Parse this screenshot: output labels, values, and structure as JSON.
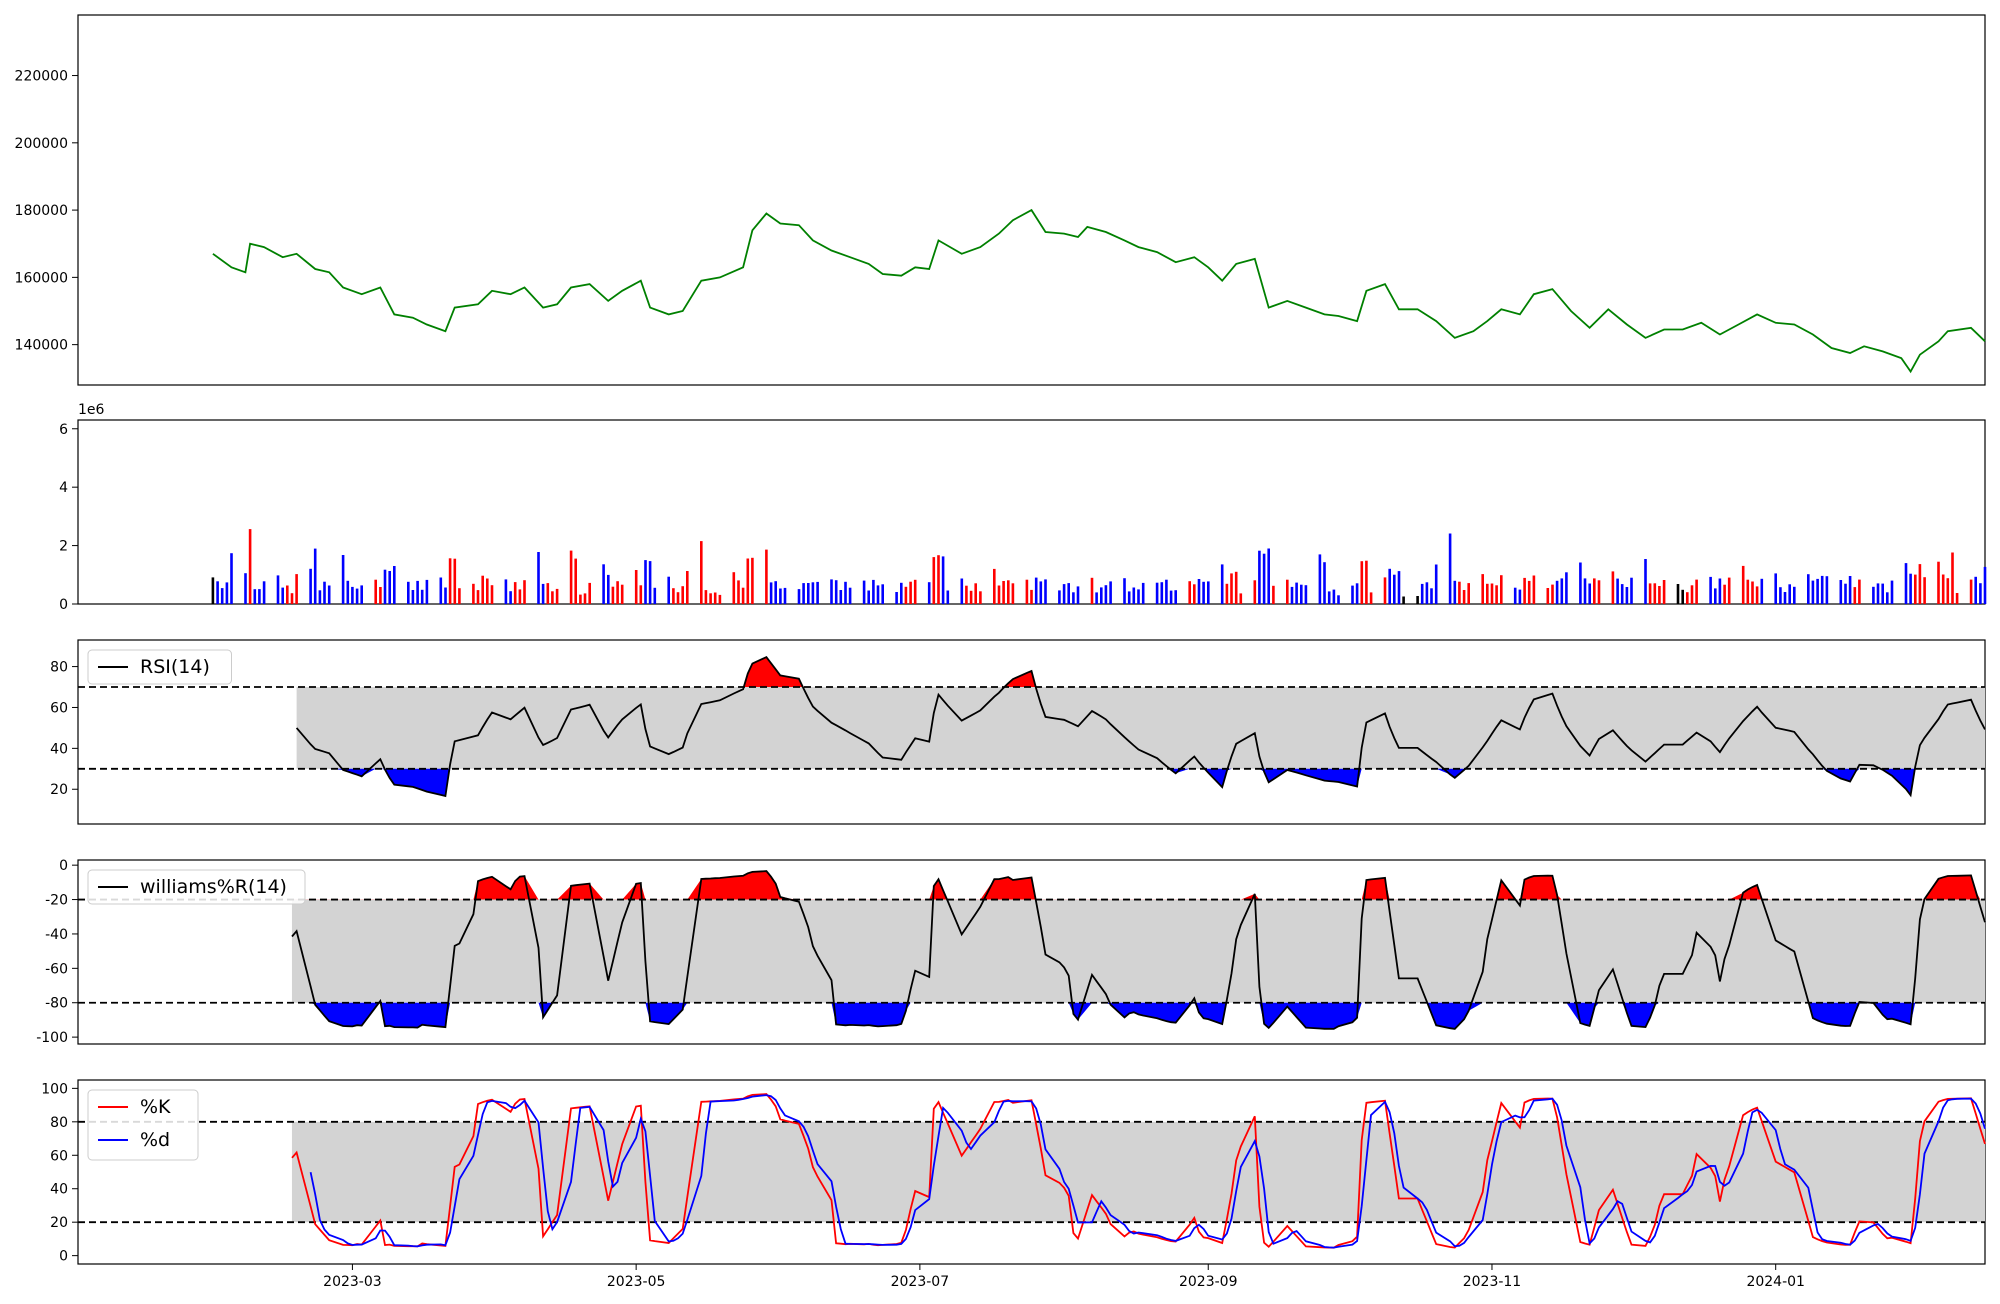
{
  "chart_data": [
    {
      "type": "line",
      "panel": "price",
      "x_range": [
        "2023-01-01",
        "2024-02-15"
      ],
      "ylim": [
        128000,
        238000
      ],
      "yticks": [
        140000,
        160000,
        180000,
        200000,
        220000
      ],
      "grid": false,
      "colors": {
        "line": "#008000"
      },
      "series": [
        {
          "points": [
            [
              "2023-01-30",
              167000
            ],
            [
              "2023-02-03",
              163000
            ],
            [
              "2023-02-06",
              161500
            ],
            [
              "2023-02-07",
              170000
            ],
            [
              "2023-02-10",
              169000
            ],
            [
              "2023-02-14",
              166000
            ],
            [
              "2023-02-17",
              167000
            ],
            [
              "2023-02-21",
              162500
            ],
            [
              "2023-02-24",
              161500
            ],
            [
              "2023-02-27",
              157000
            ],
            [
              "2023-03-03",
              155000
            ],
            [
              "2023-03-07",
              157000
            ],
            [
              "2023-03-10",
              149000
            ],
            [
              "2023-03-14",
              148000
            ],
            [
              "2023-03-17",
              146000
            ],
            [
              "2023-03-21",
              144000
            ],
            [
              "2023-03-23",
              151000
            ],
            [
              "2023-03-28",
              152000
            ],
            [
              "2023-03-31",
              156000
            ],
            [
              "2023-04-04",
              155000
            ],
            [
              "2023-04-07",
              157000
            ],
            [
              "2023-04-11",
              151000
            ],
            [
              "2023-04-14",
              152000
            ],
            [
              "2023-04-17",
              157000
            ],
            [
              "2023-04-21",
              158000
            ],
            [
              "2023-04-25",
              153000
            ],
            [
              "2023-04-28",
              156000
            ],
            [
              "2023-05-02",
              159000
            ],
            [
              "2023-05-04",
              151000
            ],
            [
              "2023-05-08",
              149000
            ],
            [
              "2023-05-11",
              150000
            ],
            [
              "2023-05-15",
              159000
            ],
            [
              "2023-05-19",
              160000
            ],
            [
              "2023-05-24",
              163000
            ],
            [
              "2023-05-26",
              174000
            ],
            [
              "2023-05-29",
              179000
            ],
            [
              "2023-06-01",
              176000
            ],
            [
              "2023-06-05",
              175500
            ],
            [
              "2023-06-08",
              171000
            ],
            [
              "2023-06-12",
              168000
            ],
            [
              "2023-06-16",
              166000
            ],
            [
              "2023-06-20",
              164000
            ],
            [
              "2023-06-23",
              161000
            ],
            [
              "2023-06-27",
              160500
            ],
            [
              "2023-06-30",
              163000
            ],
            [
              "2023-07-03",
              162500
            ],
            [
              "2023-07-05",
              171000
            ],
            [
              "2023-07-10",
              167000
            ],
            [
              "2023-07-14",
              169000
            ],
            [
              "2023-07-18",
              173000
            ],
            [
              "2023-07-21",
              177000
            ],
            [
              "2023-07-25",
              180000
            ],
            [
              "2023-07-28",
              173500
            ],
            [
              "2023-08-01",
              173000
            ],
            [
              "2023-08-04",
              172000
            ],
            [
              "2023-08-06",
              175000
            ],
            [
              "2023-08-10",
              173500
            ],
            [
              "2023-08-14",
              171000
            ],
            [
              "2023-08-17",
              169000
            ],
            [
              "2023-08-21",
              167500
            ],
            [
              "2023-08-25",
              164500
            ],
            [
              "2023-08-29",
              166000
            ],
            [
              "2023-09-01",
              163000
            ],
            [
              "2023-09-04",
              159000
            ],
            [
              "2023-09-07",
              164000
            ],
            [
              "2023-09-11",
              165500
            ],
            [
              "2023-09-14",
              151000
            ],
            [
              "2023-09-18",
              153000
            ],
            [
              "2023-09-22",
              151000
            ],
            [
              "2023-09-26",
              149000
            ],
            [
              "2023-09-29",
              148500
            ],
            [
              "2023-10-03",
              147000
            ],
            [
              "2023-10-05",
              156000
            ],
            [
              "2023-10-09",
              158000
            ],
            [
              "2023-10-12",
              150500
            ],
            [
              "2023-10-16",
              150500
            ],
            [
              "2023-10-20",
              147000
            ],
            [
              "2023-10-24",
              142000
            ],
            [
              "2023-10-28",
              144000
            ],
            [
              "2023-10-31",
              147000
            ],
            [
              "2023-11-03",
              150500
            ],
            [
              "2023-11-07",
              149000
            ],
            [
              "2023-11-10",
              155000
            ],
            [
              "2023-11-14",
              156500
            ],
            [
              "2023-11-18",
              150000
            ],
            [
              "2023-11-22",
              145000
            ],
            [
              "2023-11-26",
              150500
            ],
            [
              "2023-11-30",
              146000
            ],
            [
              "2023-12-04",
              142000
            ],
            [
              "2023-12-08",
              144500
            ],
            [
              "2023-12-12",
              144500
            ],
            [
              "2023-12-16",
              146500
            ],
            [
              "2023-12-20",
              143000
            ],
            [
              "2023-12-24",
              146000
            ],
            [
              "2023-12-28",
              149000
            ],
            [
              "2024-01-01",
              146500
            ],
            [
              "2024-01-05",
              146000
            ],
            [
              "2024-01-09",
              143000
            ],
            [
              "2024-01-13",
              139000
            ],
            [
              "2024-01-17",
              137500
            ],
            [
              "2024-01-20",
              139500
            ],
            [
              "2024-01-24",
              138000
            ],
            [
              "2024-01-28",
              136000
            ],
            [
              "2024-01-30",
              132000
            ],
            [
              "2024-02-01",
              137000
            ],
            [
              "2024-02-05",
              141000
            ],
            [
              "2024-02-07",
              144000
            ],
            [
              "2024-02-12",
              145000
            ],
            [
              "2024-02-15",
              141000
            ]
          ]
        }
      ]
    },
    {
      "type": "bar",
      "panel": "volume",
      "scale_label": "1e6",
      "ylim": [
        0,
        6.3
      ],
      "yticks": [
        0,
        2,
        4,
        6
      ],
      "grid": false,
      "colors": {
        "up": "#ff0000",
        "down": "#0000ff",
        "flat": "#000000"
      },
      "note": "daily volume in millions; color = up (red) / down (blue) / flat (black) day"
    },
    {
      "type": "area",
      "panel": "rsi",
      "legend": [
        "RSI(14)"
      ],
      "legend_position": "top-left",
      "ylim": [
        3,
        93
      ],
      "yticks": [
        20,
        40,
        60,
        80
      ],
      "thresholds": [
        30,
        70
      ],
      "colors": {
        "line": "#000000",
        "band": "#d3d3d3",
        "over": "#ff0000",
        "under": "#0000ff"
      }
    },
    {
      "type": "area",
      "panel": "williams_r",
      "legend": [
        "williams%R(14)"
      ],
      "legend_position": "top-left",
      "ylim": [
        -104,
        3
      ],
      "yticks": [
        0,
        -20,
        -40,
        -60,
        -80,
        -100
      ],
      "thresholds": [
        -20,
        -80
      ],
      "colors": {
        "line": "#000000",
        "band": "#d3d3d3",
        "over": "#ff0000",
        "under": "#0000ff"
      }
    },
    {
      "type": "line",
      "panel": "stochastic",
      "legend": [
        "%K",
        "%d"
      ],
      "legend_position": "top-left",
      "ylim": [
        -5,
        105
      ],
      "yticks": [
        0,
        20,
        40,
        60,
        80,
        100
      ],
      "thresholds": [
        20,
        80
      ],
      "colors": {
        "k": "#ff0000",
        "d": "#0000ff",
        "band": "#d3d3d3"
      },
      "xticks": [
        "2023-03",
        "2023-05",
        "2023-07",
        "2023-09",
        "2023-11",
        "2024-01"
      ]
    }
  ]
}
